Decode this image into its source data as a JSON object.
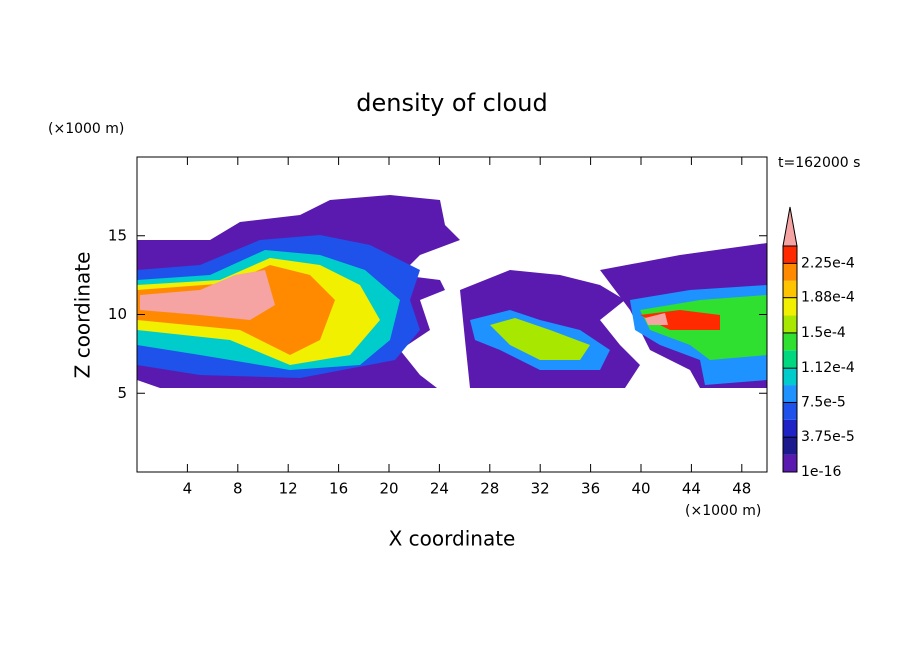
{
  "chart_data": {
    "type": "contour",
    "title": "density of cloud",
    "xlabel": "X coordinate",
    "ylabel": "Z coordinate",
    "xunit": "(×1000 m)",
    "yunit": "(×1000 m)",
    "time_label": "t=162000 s",
    "xlim": [
      0,
      50
    ],
    "ylim": [
      0,
      20
    ],
    "xticks": [
      4,
      8,
      12,
      16,
      20,
      24,
      28,
      32,
      36,
      40,
      44,
      48
    ],
    "yticks": [
      5,
      10,
      15
    ],
    "colorbar": {
      "lim": [
        0,
        0.00024375
      ],
      "colors": [
        "#5a1ab0",
        "#1c1a8c",
        "#1f22c4",
        "#1e52ea",
        "#1e92ff",
        "#00cccc",
        "#00d880",
        "#30e030",
        "#a8e800",
        "#f0f000",
        "#ffc400",
        "#ff8a00",
        "#ff2a00"
      ],
      "over_color": "#f5a3a3",
      "ticks": [
        {
          "value": 1e-16,
          "label": "1e-16"
        },
        {
          "value": 3.75e-05,
          "label": "3.75e-5"
        },
        {
          "value": 7.5e-05,
          "label": "7.5e-5"
        },
        {
          "value": 0.000112,
          "label": "1.12e-4"
        },
        {
          "value": 0.00015,
          "label": "1.5e-4"
        },
        {
          "value": 0.000188,
          "label": "1.88e-4"
        },
        {
          "value": 0.000225,
          "label": "2.25e-4"
        }
      ]
    }
  }
}
